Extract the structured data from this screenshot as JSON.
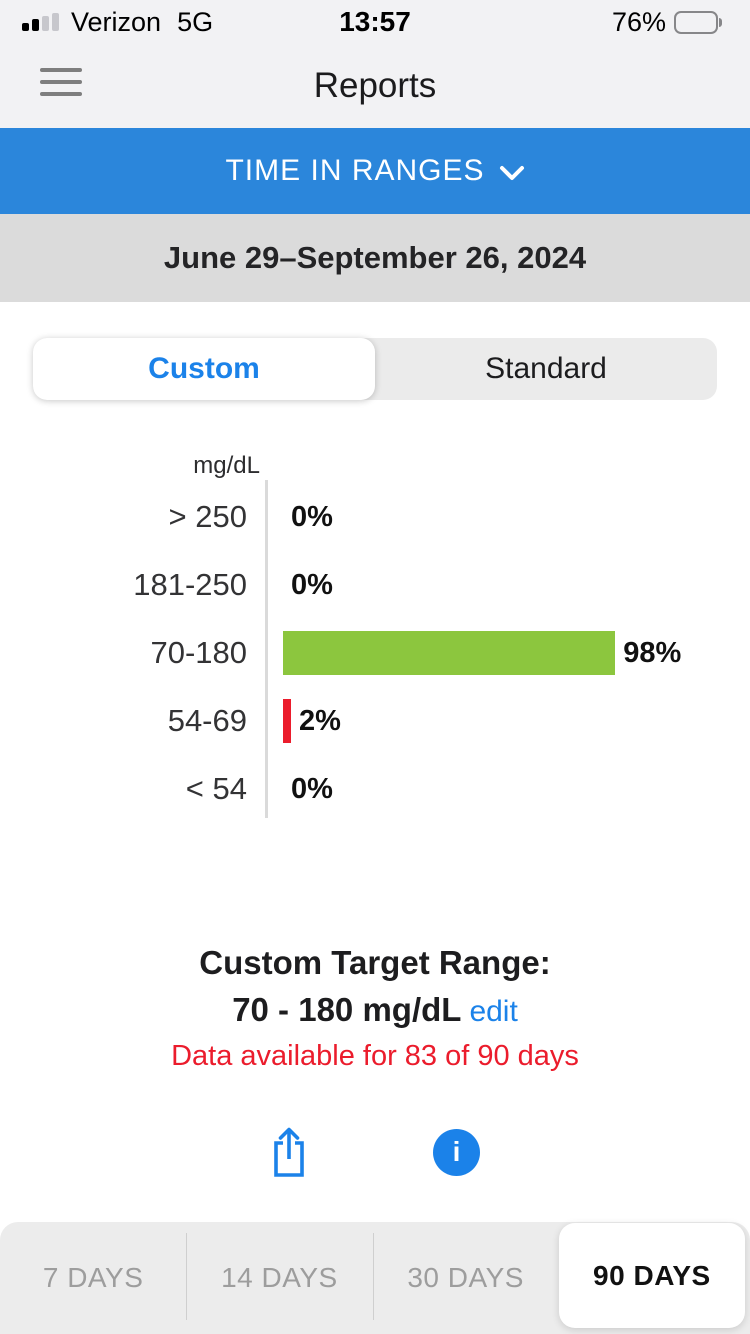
{
  "colors": {
    "top_bg": "#F2F2F4",
    "blue_bar_bg": "#2B86DB",
    "accent_blue": "#1B82E9",
    "date_bar_bg": "#DBDBDB",
    "control_bg": "#EBEBEB",
    "green": "#8CC63E",
    "red": "#EB1C2C",
    "axis_gray": "#DADADA",
    "period_bg": "#ECECEC",
    "period_text": "#9D9D9D",
    "divider": "#CFCFCF"
  },
  "status_bar": {
    "carrier": "Verizon",
    "network": "5G",
    "time": "13:57",
    "battery_percent": "76%",
    "battery_level": 76
  },
  "header": {
    "title": "Reports"
  },
  "report_selector": {
    "label": "TIME IN RANGES"
  },
  "date_bar": {
    "range": "June 29–September 26, 2024"
  },
  "range_type_tabs": {
    "custom_label": "Custom",
    "standard_label": "Standard",
    "selected": "Custom"
  },
  "chart_data": {
    "type": "bar",
    "orientation": "horizontal",
    "unit_label": "mg/dL",
    "categories": [
      "> 250",
      "181-250",
      "70-180",
      "54-69",
      "< 54"
    ],
    "values": [
      0,
      0,
      98,
      2,
      0
    ],
    "value_labels": [
      "0%",
      "0%",
      "98%",
      "2%",
      "0%"
    ],
    "bar_colors": [
      null,
      null,
      "#8CC63E",
      "#EB1C2C",
      null
    ],
    "xlim": [
      0,
      100
    ],
    "value_suffix": "%"
  },
  "target_info": {
    "title": "Custom Target Range:",
    "range": "70 - 180 mg/dL",
    "edit_label": "edit",
    "availability": "Data available for 83 of 90 days"
  },
  "period_tabs": {
    "options": [
      "7 DAYS",
      "14 DAYS",
      "30 DAYS",
      "90 DAYS"
    ],
    "selected": "90 DAYS"
  }
}
